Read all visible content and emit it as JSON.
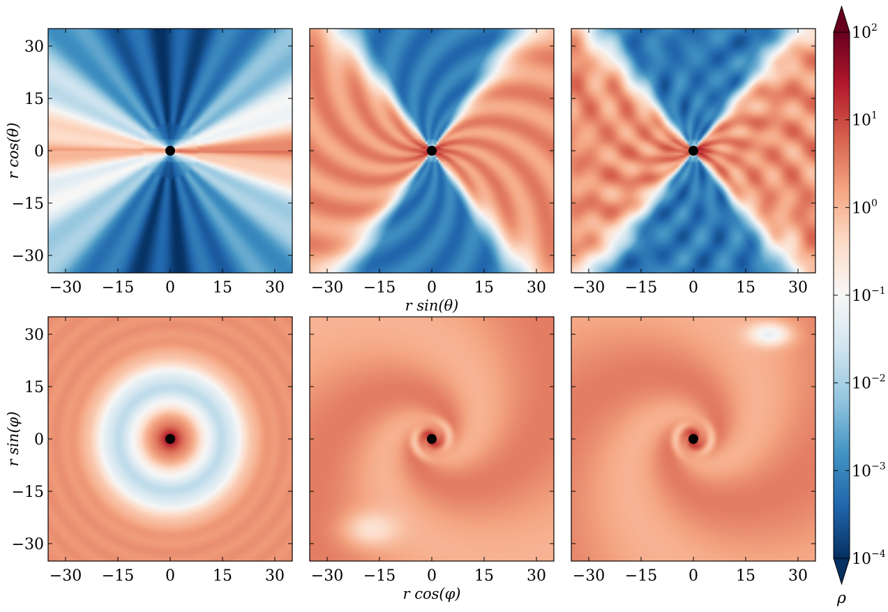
{
  "chart_data": {
    "type": "heatmap",
    "colormap": "RdBu_r",
    "scale": "log",
    "panels": [
      {
        "id": "r0c0",
        "xlabel": "",
        "ylabel": "r cos(θ)",
        "view": "meridional",
        "stage": 0
      },
      {
        "id": "r0c1",
        "xlabel": "r sin(θ)",
        "ylabel": "",
        "view": "meridional",
        "stage": 1
      },
      {
        "id": "r0c2",
        "xlabel": "",
        "ylabel": "",
        "view": "meridional",
        "stage": 2
      },
      {
        "id": "r1c0",
        "xlabel": "",
        "ylabel": "r sin(φ)",
        "view": "equatorial",
        "stage": 0
      },
      {
        "id": "r1c1",
        "xlabel": "r cos(φ)",
        "ylabel": "",
        "view": "equatorial",
        "stage": 1
      },
      {
        "id": "r1c2",
        "xlabel": "",
        "ylabel": "",
        "view": "equatorial",
        "stage": 2
      }
    ],
    "xlim": [
      -35,
      35
    ],
    "ylim": [
      -35,
      35
    ],
    "ticks": [
      -30,
      -15,
      0,
      15,
      30
    ],
    "tick_labels": [
      "−30",
      "−15",
      "0",
      "15",
      "30"
    ],
    "colorbar": {
      "label": "ρ",
      "min_exp": -4,
      "max_exp": 2,
      "tick_exps": [
        -4,
        -3,
        -2,
        -1,
        0,
        1,
        2
      ],
      "extend": "both",
      "colors": [
        "#053061",
        "#2166ac",
        "#4393c3",
        "#92c5de",
        "#d1e5f0",
        "#f7f7f7",
        "#fddbc7",
        "#f4a582",
        "#d6604d",
        "#b2182b",
        "#67001f"
      ]
    }
  }
}
